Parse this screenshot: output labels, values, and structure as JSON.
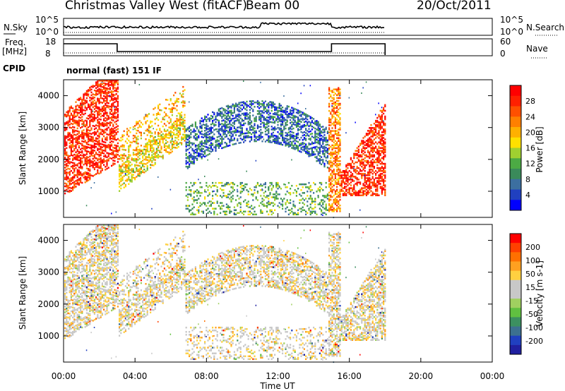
{
  "header": {
    "station": "Christmas Valley West (fitACF)",
    "beam": "Beam 00",
    "date": "20/Oct/2011"
  },
  "status_panels": {
    "nsky_label": "N.Sky",
    "nsky_ticks": [
      "10^5",
      "10^0"
    ],
    "nsearch_label": "N.Search",
    "nsearch_ticks": [
      "10^5",
      "10^0"
    ],
    "freq_label_1": "Freq.",
    "freq_label_2": "[MHz]",
    "freq_ticks": [
      "18",
      "8"
    ],
    "nave_label": "Nave",
    "nave_ticks": [
      "60",
      "0"
    ],
    "cpid_label": "CPID",
    "cpid_value": "normal (fast) 151 IF"
  },
  "colorbars": {
    "power": {
      "label": "Power [dB]",
      "ticks": [
        "28",
        "24",
        "20",
        "16",
        "12",
        "8",
        "4"
      ],
      "colors": [
        "#0000ff",
        "#2040c0",
        "#3c6fa0",
        "#3a8a5a",
        "#4caa44",
        "#a0d030",
        "#ffe000",
        "#ffb000",
        "#ff8000",
        "#ff5000",
        "#ff2000",
        "#ff0000"
      ]
    },
    "velocity": {
      "label": "Velocity [m s-1]",
      "ticks": [
        "200",
        "100",
        "50",
        "15",
        "-15",
        "-50",
        "-100",
        "-200"
      ],
      "colors": [
        "#2020a0",
        "#2040c0",
        "#3c7090",
        "#3c9060",
        "#60c040",
        "#a0d060",
        "#c8c8c8",
        "#c8c8c8",
        "#ffd040",
        "#ffa020",
        "#ff7000",
        "#ff4000",
        "#ff0000"
      ]
    }
  },
  "chart_data": {
    "type": "heatmap",
    "xlabel": "Time UT",
    "x_ticks": [
      "00:00",
      "04:00",
      "08:00",
      "12:00",
      "16:00",
      "20:00",
      "00:00"
    ],
    "xlim_hours": [
      0,
      24
    ],
    "data_end_hour": 18,
    "ylabel": "Slant Range [km]",
    "y_ticks": [
      1000,
      2000,
      3000,
      4000
    ],
    "ylim_km": [
      180,
      4500
    ],
    "freq_step_hours": [
      3,
      15
    ]
  }
}
